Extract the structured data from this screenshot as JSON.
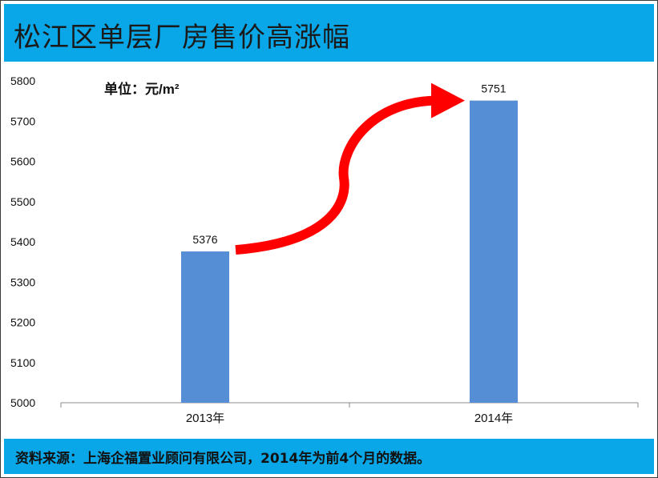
{
  "header": {
    "title": "松江区单层厂房售价高涨幅"
  },
  "footer": {
    "note": "资料来源：上海企福置业顾问有限公司，2014年为前4个月的数据。"
  },
  "chart_data": {
    "type": "bar",
    "title": "松江区单层厂房售价高涨幅",
    "unit_label": "单位：元/m²",
    "categories": [
      "2013年",
      "2014年"
    ],
    "values": [
      5376,
      5751
    ],
    "data_labels": [
      "5376",
      "5751"
    ],
    "ylim": [
      5000,
      5800
    ],
    "yticks": [
      5000,
      5100,
      5200,
      5300,
      5400,
      5500,
      5600,
      5700,
      5800
    ],
    "bar_color": "#558ed5",
    "arrow_color": "#ff0000",
    "grid": false,
    "legend": "none"
  }
}
